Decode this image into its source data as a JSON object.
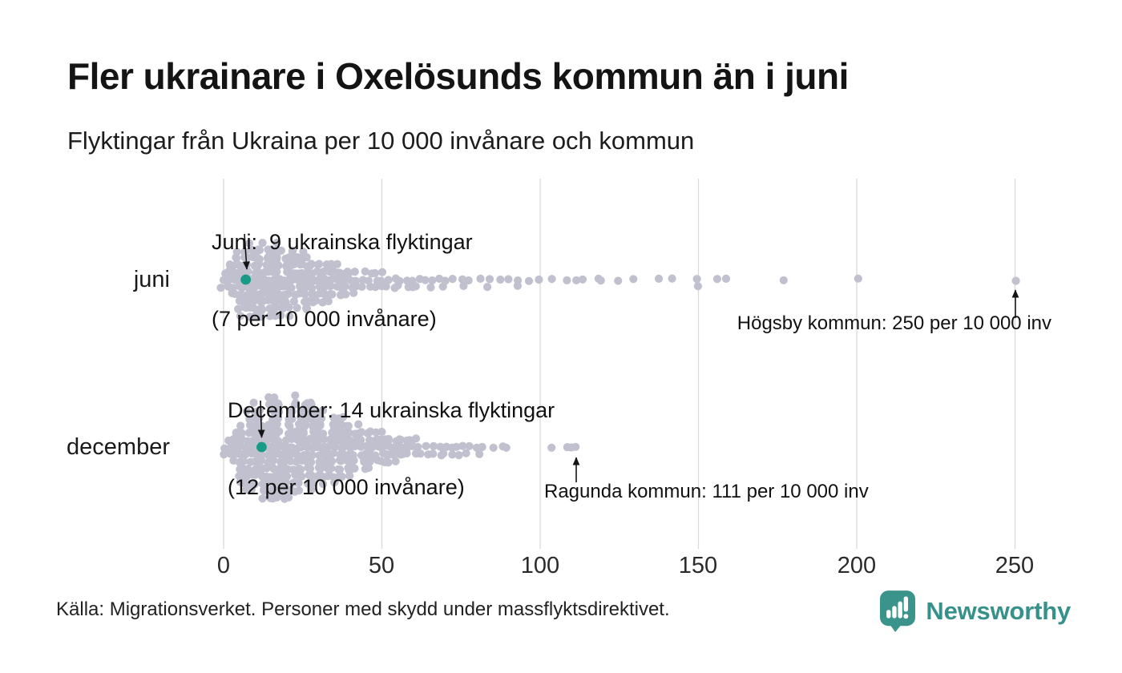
{
  "header": {
    "title": "Fler ukrainare i Oxelösunds kommun än i juni",
    "subtitle": "Flyktingar från Ukraina per 10 000 invånare och kommun"
  },
  "annotations": {
    "juni": {
      "line1": "Juni:  9 ukrainska flyktingar",
      "line2": "(7 per 10 000 invånare)"
    },
    "december": {
      "line1": "December: 14 ukrainska flyktingar",
      "line2": "(12 per 10 000 invånare)"
    },
    "hogsby": "Högsby kommun: 250 per 10 000 inv",
    "ragunda": "Ragunda kommun: 111 per 10 000 inv"
  },
  "footer": {
    "source": "Källa: Migrationsverket. Personer med skydd under massflyktsdirektivet.",
    "logo_text": "Newsworthy"
  },
  "colors": {
    "dot_gray": "#c0c0ce",
    "highlight_teal": "#179b87",
    "gridline": "#d9d9d9",
    "brand_teal": "#35918a"
  },
  "chart_data": {
    "type": "scatter",
    "variant": "beeswarm",
    "title": "Fler ukrainare i Oxelösunds kommun än i juni",
    "subtitle": "Flyktingar från Ukraina per 10 000 invånare och kommun",
    "xlabel": "",
    "ylabel": "",
    "grid": "vertical",
    "x_axis": {
      "ticks": [
        0,
        50,
        100,
        150,
        200,
        250
      ],
      "tick_labels": [
        "0",
        "50",
        "100",
        "150",
        "200",
        "250"
      ],
      "range": [
        0,
        260
      ]
    },
    "series": [
      {
        "name": "juni",
        "seed": 41,
        "highlight": {
          "value": 7,
          "label": "Juni: 9 ukrainska flyktingar (7 per 10 000 invånare)"
        },
        "max_annotation": {
          "value": 250,
          "label": "Högsby kommun: 250 per 10 000 inv"
        },
        "bins": [
          [
            0,
            3
          ],
          [
            1,
            2
          ],
          [
            2,
            4
          ],
          [
            3,
            5
          ],
          [
            4,
            6
          ],
          [
            5,
            8
          ],
          [
            6,
            9
          ],
          [
            7,
            10
          ],
          [
            8,
            10
          ],
          [
            9,
            10
          ],
          [
            10,
            11
          ],
          [
            11,
            10
          ],
          [
            12,
            11
          ],
          [
            13,
            10
          ],
          [
            14,
            11
          ],
          [
            15,
            10
          ],
          [
            16,
            10
          ],
          [
            17,
            9
          ],
          [
            18,
            10
          ],
          [
            19,
            9
          ],
          [
            20,
            10
          ],
          [
            21,
            9
          ],
          [
            22,
            9
          ],
          [
            23,
            8
          ],
          [
            24,
            8
          ],
          [
            25,
            8
          ],
          [
            26,
            7
          ],
          [
            27,
            7
          ],
          [
            28,
            7
          ],
          [
            29,
            6
          ],
          [
            30,
            6
          ],
          [
            31,
            6
          ],
          [
            32,
            5
          ],
          [
            33,
            5
          ],
          [
            34,
            5
          ],
          [
            35,
            5
          ],
          [
            36,
            4
          ],
          [
            37,
            4
          ],
          [
            38,
            4
          ],
          [
            39,
            4
          ],
          [
            40,
            4
          ],
          [
            42,
            3
          ],
          [
            44,
            3
          ],
          [
            46,
            3
          ],
          [
            48,
            3
          ],
          [
            50,
            3
          ],
          [
            52,
            2
          ],
          [
            54,
            2
          ],
          [
            56,
            2
          ],
          [
            58,
            2
          ],
          [
            60,
            2
          ],
          [
            62,
            2
          ],
          [
            64,
            1
          ],
          [
            66,
            2
          ],
          [
            68,
            1
          ],
          [
            70,
            2
          ],
          [
            72,
            1
          ],
          [
            75,
            2
          ],
          [
            78,
            1
          ],
          [
            81,
            1
          ],
          [
            84,
            2
          ],
          [
            87,
            1
          ],
          [
            90,
            1
          ],
          [
            93,
            2
          ],
          [
            96,
            1
          ],
          [
            100,
            1
          ],
          [
            104,
            1
          ],
          [
            108,
            1
          ],
          [
            112,
            1
          ],
          [
            114,
            1
          ],
          [
            118,
            1
          ],
          [
            119,
            1
          ],
          [
            124,
            1
          ],
          [
            130,
            1
          ],
          [
            137,
            1
          ],
          [
            141,
            1
          ],
          [
            150,
            2
          ],
          [
            156,
            1
          ],
          [
            159,
            1
          ],
          [
            177,
            1
          ],
          [
            200,
            1
          ],
          [
            250,
            1
          ]
        ]
      },
      {
        "name": "december",
        "seed": 7,
        "highlight": {
          "value": 12,
          "label": "December: 14 ukrainska flyktingar (12 per 10 000 invånare)"
        },
        "max_annotation": {
          "value": 111,
          "label": "Ragunda kommun: 111 per 10 000 inv"
        },
        "bins": [
          [
            0,
            2
          ],
          [
            2,
            3
          ],
          [
            3,
            4
          ],
          [
            4,
            5
          ],
          [
            5,
            6
          ],
          [
            6,
            8
          ],
          [
            7,
            9
          ],
          [
            8,
            10
          ],
          [
            9,
            11
          ],
          [
            10,
            12
          ],
          [
            11,
            12
          ],
          [
            12,
            13
          ],
          [
            13,
            13
          ],
          [
            14,
            14
          ],
          [
            15,
            14
          ],
          [
            16,
            14
          ],
          [
            17,
            15
          ],
          [
            18,
            15
          ],
          [
            19,
            14
          ],
          [
            20,
            15
          ],
          [
            21,
            14
          ],
          [
            22,
            14
          ],
          [
            23,
            13
          ],
          [
            24,
            13
          ],
          [
            25,
            13
          ],
          [
            26,
            12
          ],
          [
            27,
            12
          ],
          [
            28,
            11
          ],
          [
            29,
            11
          ],
          [
            30,
            11
          ],
          [
            31,
            10
          ],
          [
            32,
            10
          ],
          [
            33,
            9
          ],
          [
            34,
            9
          ],
          [
            35,
            9
          ],
          [
            36,
            8
          ],
          [
            37,
            8
          ],
          [
            38,
            8
          ],
          [
            39,
            7
          ],
          [
            40,
            7
          ],
          [
            41,
            7
          ],
          [
            42,
            6
          ],
          [
            43,
            6
          ],
          [
            44,
            6
          ],
          [
            45,
            5
          ],
          [
            46,
            5
          ],
          [
            47,
            5
          ],
          [
            48,
            5
          ],
          [
            49,
            4
          ],
          [
            50,
            4
          ],
          [
            51,
            4
          ],
          [
            52,
            4
          ],
          [
            53,
            4
          ],
          [
            54,
            3
          ],
          [
            55,
            3
          ],
          [
            56,
            3
          ],
          [
            57,
            3
          ],
          [
            58,
            3
          ],
          [
            60,
            3
          ],
          [
            62,
            3
          ],
          [
            64,
            2
          ],
          [
            66,
            2
          ],
          [
            68,
            2
          ],
          [
            70,
            2
          ],
          [
            72,
            2
          ],
          [
            74,
            2
          ],
          [
            76,
            2
          ],
          [
            78,
            1
          ],
          [
            80,
            2
          ],
          [
            82,
            1
          ],
          [
            85,
            1
          ],
          [
            88,
            1
          ],
          [
            89,
            1
          ],
          [
            104,
            1
          ],
          [
            108,
            1
          ],
          [
            110,
            1
          ],
          [
            111,
            1
          ]
        ]
      }
    ]
  }
}
